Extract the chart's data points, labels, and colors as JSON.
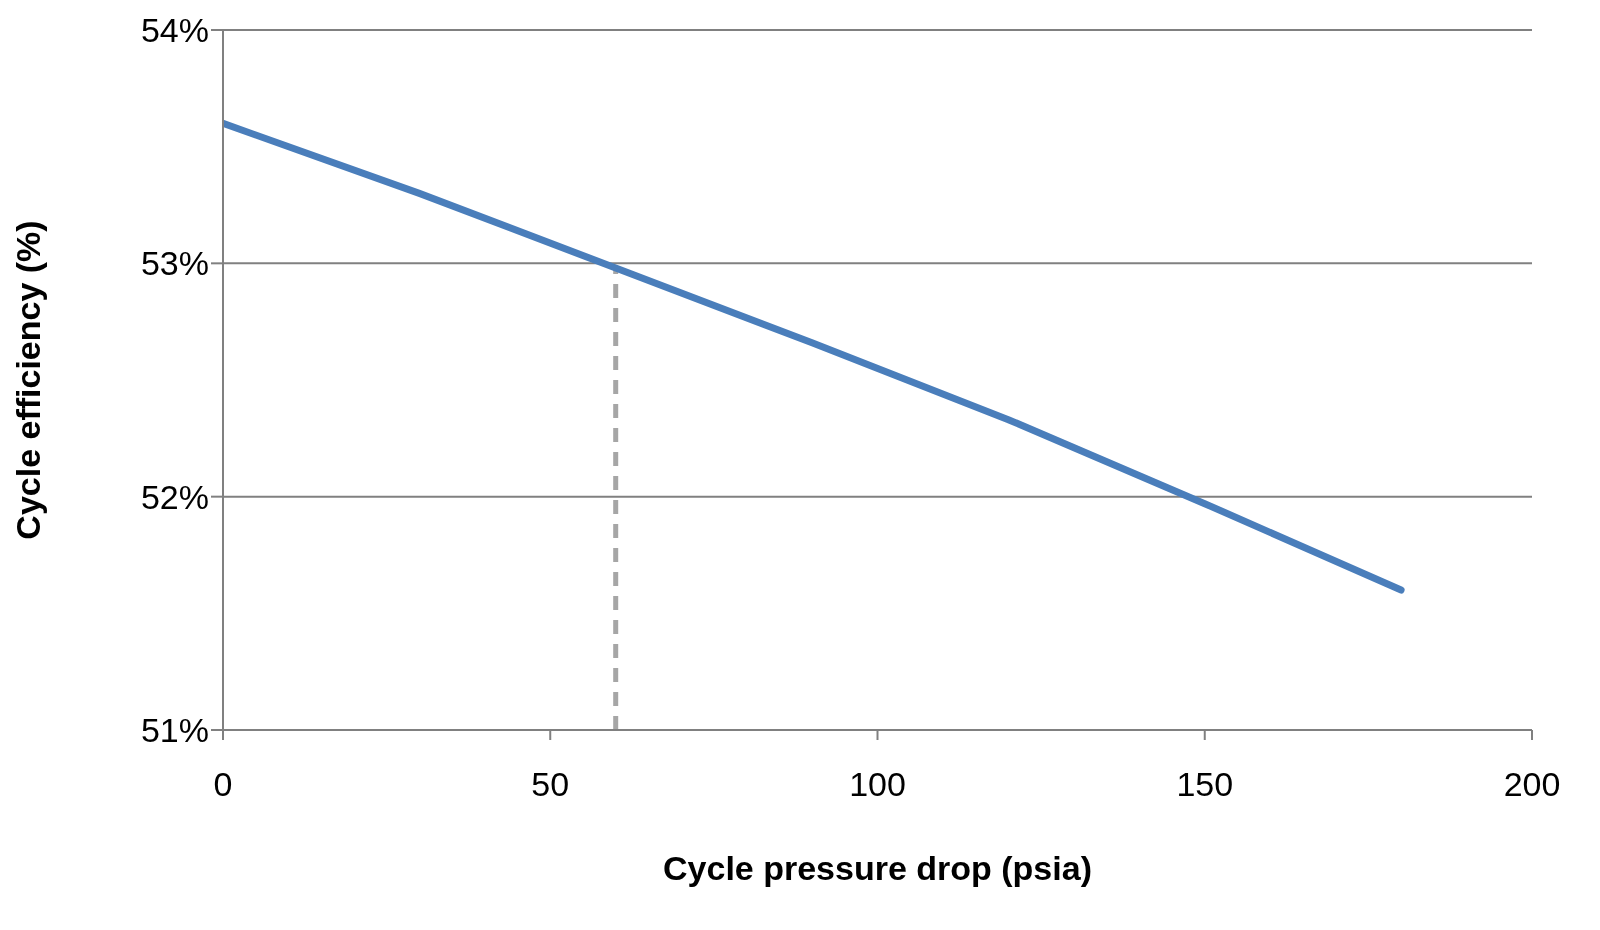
{
  "chart_data": {
    "type": "line",
    "xlabel": "Cycle pressure drop  (psia)",
    "ylabel": "Cycle efficiency  (%)",
    "x": [
      0,
      30,
      60,
      90,
      120,
      150,
      180
    ],
    "series": [
      {
        "color": "#4a7ebb",
        "values": [
          53.6,
          53.3,
          52.98,
          52.66,
          52.33,
          51.97,
          51.6
        ]
      }
    ],
    "xlim": [
      0,
      200
    ],
    "xticks": [
      0,
      50,
      100,
      150,
      200
    ],
    "ylim": [
      51,
      54
    ],
    "yticks": [
      {
        "value": 51,
        "label": "51%"
      },
      {
        "value": 52,
        "label": "52%"
      },
      {
        "value": 53,
        "label": "53%"
      },
      {
        "value": 54,
        "label": "54%"
      }
    ],
    "grid": "y",
    "marker": "none",
    "line_style": "solid",
    "ref_lines": [
      {
        "axis": "x",
        "value": 60,
        "label": null,
        "color": "#a6a6a6",
        "line_style": "dashed"
      }
    ]
  }
}
